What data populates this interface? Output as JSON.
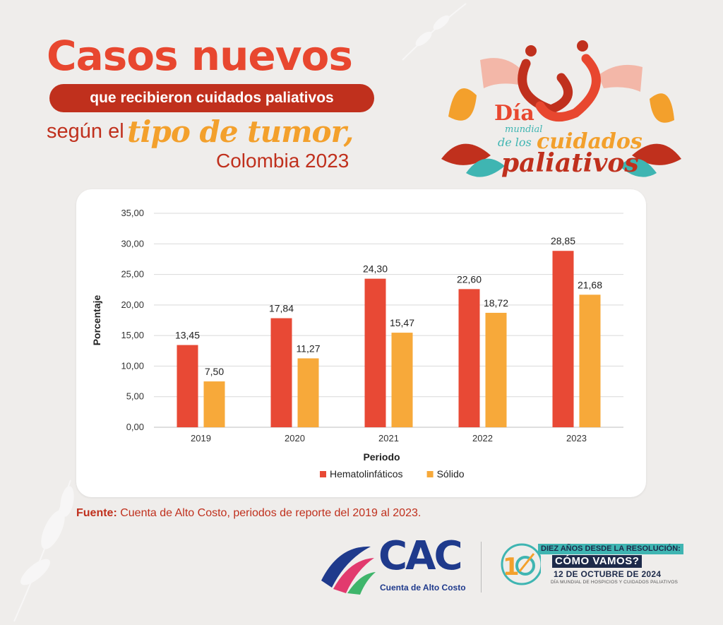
{
  "header": {
    "title": "Casos nuevos",
    "subtitle": "que recibieron cuidados paliativos",
    "line3_lead": "según el",
    "line3_emphasis": "tipo de tumor,",
    "line4": "Colombia 2023"
  },
  "event_logo": {
    "line1": "Día",
    "line2": "mundial",
    "line3": "de los",
    "line4": "cuidados",
    "line5": "paliativos"
  },
  "chart_data": {
    "type": "bar",
    "categories": [
      "2019",
      "2020",
      "2021",
      "2022",
      "2023"
    ],
    "series": [
      {
        "name": "Hematolinfáticos",
        "color": "#e84935",
        "values": [
          13.45,
          17.84,
          24.3,
          22.6,
          28.85
        ],
        "labels": [
          "13,45",
          "17,84",
          "24,30",
          "22,60",
          "28,85"
        ]
      },
      {
        "name": "Sólido",
        "color": "#f7a93a",
        "values": [
          7.5,
          11.27,
          15.47,
          18.72,
          21.68
        ],
        "labels": [
          "7,50",
          "11,27",
          "15,47",
          "18,72",
          "21,68"
        ]
      }
    ],
    "xlabel": "Periodo",
    "ylabel": "Porcentaje",
    "ylim": [
      0,
      35
    ],
    "yticks": [
      0,
      5,
      10,
      15,
      20,
      25,
      30,
      35
    ],
    "ytick_labels": [
      "0,00",
      "5,00",
      "10,00",
      "15,00",
      "20,00",
      "25,00",
      "30,00",
      "35,00"
    ],
    "grid": true,
    "legend_position": "bottom"
  },
  "source": {
    "label": "Fuente:",
    "text": " Cuenta de Alto Costo, periodos de reporte del 2019 al 2023."
  },
  "footer": {
    "cac_letters": "CAC",
    "cac_tagline": "Cuenta de Alto Costo",
    "badge_line1_a": "DIEZ AÑOS DESDE",
    "badge_line1_b": " LA RESOLUCIÓN:",
    "badge_line2": "CÓMO VAMOS?",
    "badge_line3": "12 DE OCTUBRE DE  2024",
    "badge_line4": "DÍA MUNDIAL DE HOSPICIOS Y CUIDADOS PALIATIVOS"
  }
}
